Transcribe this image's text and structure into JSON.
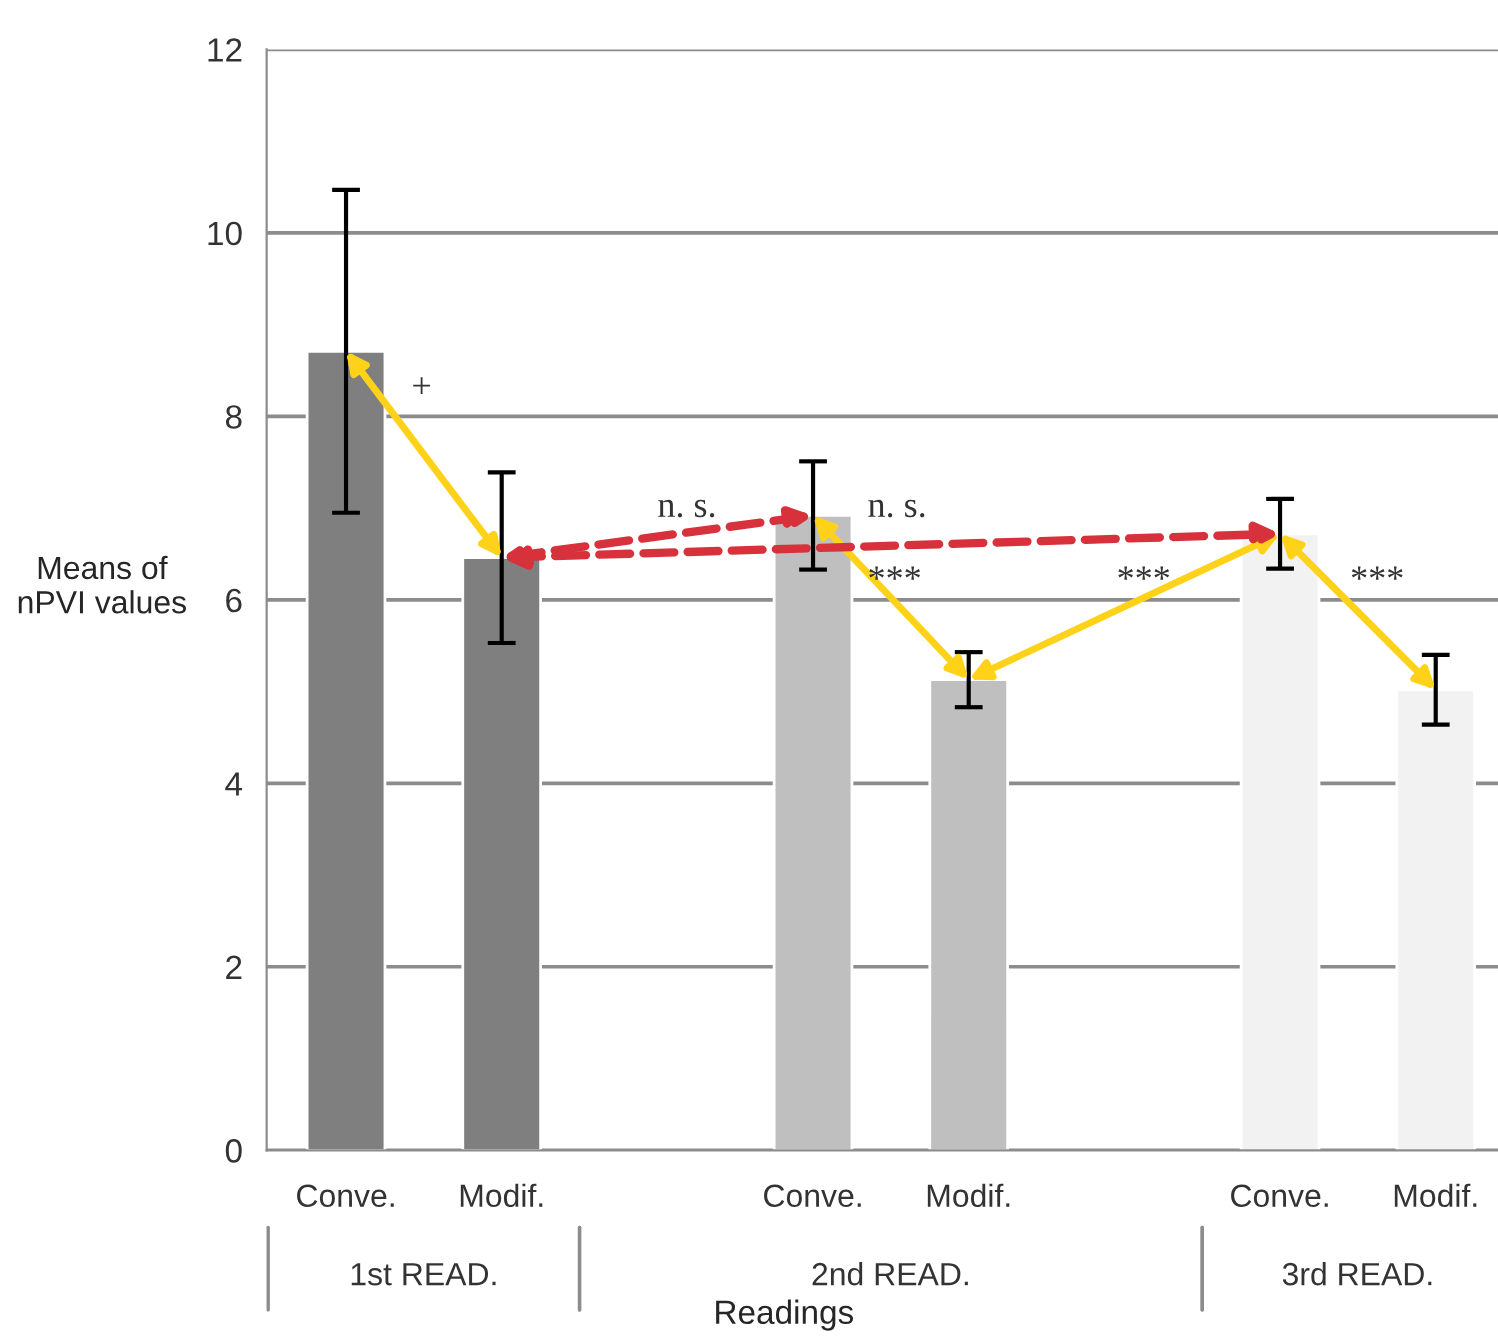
{
  "chart_data": {
    "type": "bar",
    "categories": [
      "Conve.",
      "Modif.",
      null,
      "Conve.",
      "Modif.",
      null,
      "Conve.",
      "Modif."
    ],
    "values": [
      8.71,
      6.46,
      null,
      6.92,
      5.13,
      null,
      6.72,
      5.02
    ],
    "errors": [
      1.76,
      0.93,
      null,
      0.59,
      0.3,
      null,
      0.38,
      0.38
    ],
    "colors": [
      "#7f7f7f",
      "#7f7f7f",
      "#bfbfbf",
      "#bfbfbf",
      "#bfbfbf",
      "#f2f2f2",
      "#f2f2f2",
      "#f2f2f2"
    ],
    "ylim": [
      0,
      12
    ],
    "yticks": [
      0,
      2,
      4,
      6,
      8,
      10,
      12
    ],
    "grid": "y",
    "ylabel": "Means of\nnPVI values",
    "xlabel": "Readings",
    "annotations": [
      "+",
      "n. s.",
      "n. s.",
      "***",
      "***",
      "***",
      "1st READ.",
      "2nd READ.",
      "3rd READ."
    ]
  }
}
